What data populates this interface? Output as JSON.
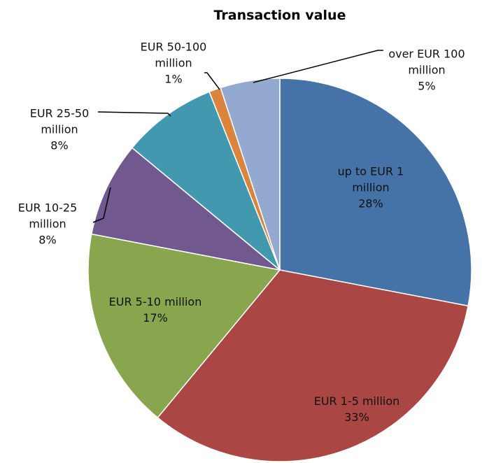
{
  "chart_data": {
    "type": "pie",
    "title": "Transaction value",
    "categories": [
      "up to EUR 1 million",
      "EUR 1-5 million",
      "EUR 5-10 million",
      "EUR 10-25 million",
      "EUR 25-50 million",
      "EUR 50-100 million",
      "over EUR 100 million"
    ],
    "values": [
      28,
      33,
      17,
      8,
      8,
      1,
      5
    ],
    "value_labels": [
      "28%",
      "33%",
      "17%",
      "8%",
      "8%",
      "1%",
      "5%"
    ],
    "colors": [
      "#4572a7",
      "#aa4643",
      "#89a54e",
      "#71588f",
      "#4198af",
      "#db843d",
      "#93a9cf"
    ]
  }
}
